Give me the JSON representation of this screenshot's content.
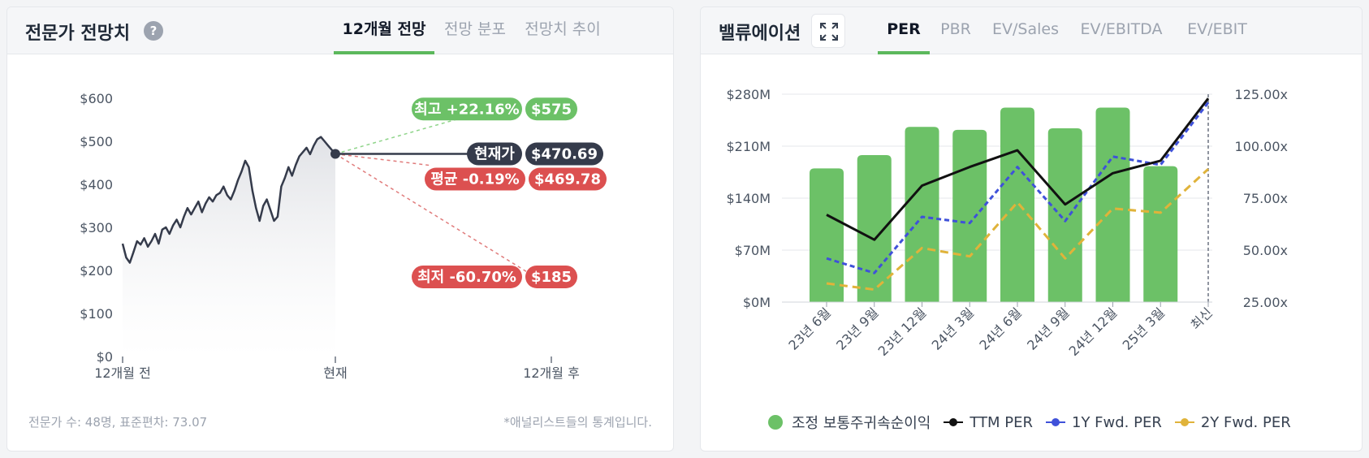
{
  "left_panel": {
    "title": "전문가 전망치",
    "help_icon": "question-circle-icon",
    "tabs": [
      {
        "label": "12개월 전망",
        "active": true
      },
      {
        "label": "전망 분포",
        "active": false
      },
      {
        "label": "전망치 추이",
        "active": false
      }
    ],
    "footer_left": "전문가 수: 48명, 표준편차: 73.07",
    "footer_right": "*애널리스트들의 통계입니다.",
    "labels": {
      "high": {
        "tag": "최고 +22.16%",
        "value": "$575"
      },
      "current": {
        "tag": "현재가",
        "value": "$470.69"
      },
      "average": {
        "tag": "평균 -0.19%",
        "value": "$469.78"
      },
      "low": {
        "tag": "최저 -60.70%",
        "value": "$185"
      }
    }
  },
  "right_panel": {
    "title": "밸류에이션",
    "expand_icon": "expand-icon",
    "tabs": [
      {
        "label": "PER",
        "active": true
      },
      {
        "label": "PBR",
        "active": false
      },
      {
        "label": "EV/Sales",
        "active": false
      },
      {
        "label": "EV/EBITDA",
        "active": false
      },
      {
        "label": "EV/EBIT",
        "active": false
      }
    ]
  },
  "colors": {
    "green": "#6cc167",
    "red": "#dc5050",
    "dark": "#353b4b",
    "black": "#111111",
    "blue": "#3f51d9",
    "yellow": "#e0b33a"
  },
  "chart_data": [
    {
      "type": "line",
      "y_ticks": [
        "$0",
        "$100",
        "$200",
        "$300",
        "$400",
        "$500",
        "$600"
      ],
      "ylim": [
        0,
        600
      ],
      "x_ticks": [
        "12개월 전",
        "현재",
        "12개월 후"
      ],
      "price_history": [
        262,
        230,
        218,
        242,
        268,
        260,
        275,
        255,
        268,
        285,
        262,
        295,
        300,
        285,
        305,
        318,
        300,
        325,
        345,
        330,
        345,
        360,
        335,
        355,
        370,
        360,
        375,
        380,
        395,
        375,
        365,
        385,
        410,
        430,
        455,
        440,
        385,
        345,
        315,
        350,
        365,
        340,
        315,
        325,
        395,
        415,
        440,
        420,
        445,
        465,
        475,
        485,
        470,
        490,
        505,
        510,
        500,
        490,
        480,
        470
      ],
      "current": 470.69,
      "targets": {
        "high": 575,
        "average": 469.78,
        "low": 185
      }
    },
    {
      "type": "bar",
      "categories": [
        "23년 6월",
        "23년 9월",
        "23년 12월",
        "24년 3월",
        "24년 6월",
        "24년 9월",
        "24년 12월",
        "25년 3월",
        "최신"
      ],
      "y_left_ticks": [
        "$0M",
        "$70M",
        "$140M",
        "$210M",
        "$280M"
      ],
      "y_left_lim": [
        0,
        280
      ],
      "y_right_ticks": [
        "25.00x",
        "50.00x",
        "75.00x",
        "100.00x",
        "125.00x"
      ],
      "y_right_lim": [
        25,
        125
      ],
      "series": [
        {
          "name": "조정 보통주귀속순이익",
          "type": "bar",
          "values": [
            180,
            198,
            236,
            232,
            262,
            234,
            262,
            183,
            null
          ]
        },
        {
          "name": "TTM PER",
          "type": "line",
          "values": [
            67,
            55,
            81,
            90,
            98,
            72,
            87,
            93,
            123
          ]
        },
        {
          "name": "1Y Fwd. PER",
          "type": "line",
          "values": [
            46,
            39,
            66,
            63,
            90,
            64,
            95,
            91,
            121
          ]
        },
        {
          "name": "2Y Fwd. PER",
          "type": "line",
          "values": [
            34,
            31,
            51,
            47,
            73,
            46,
            70,
            68,
            89
          ]
        }
      ]
    }
  ]
}
